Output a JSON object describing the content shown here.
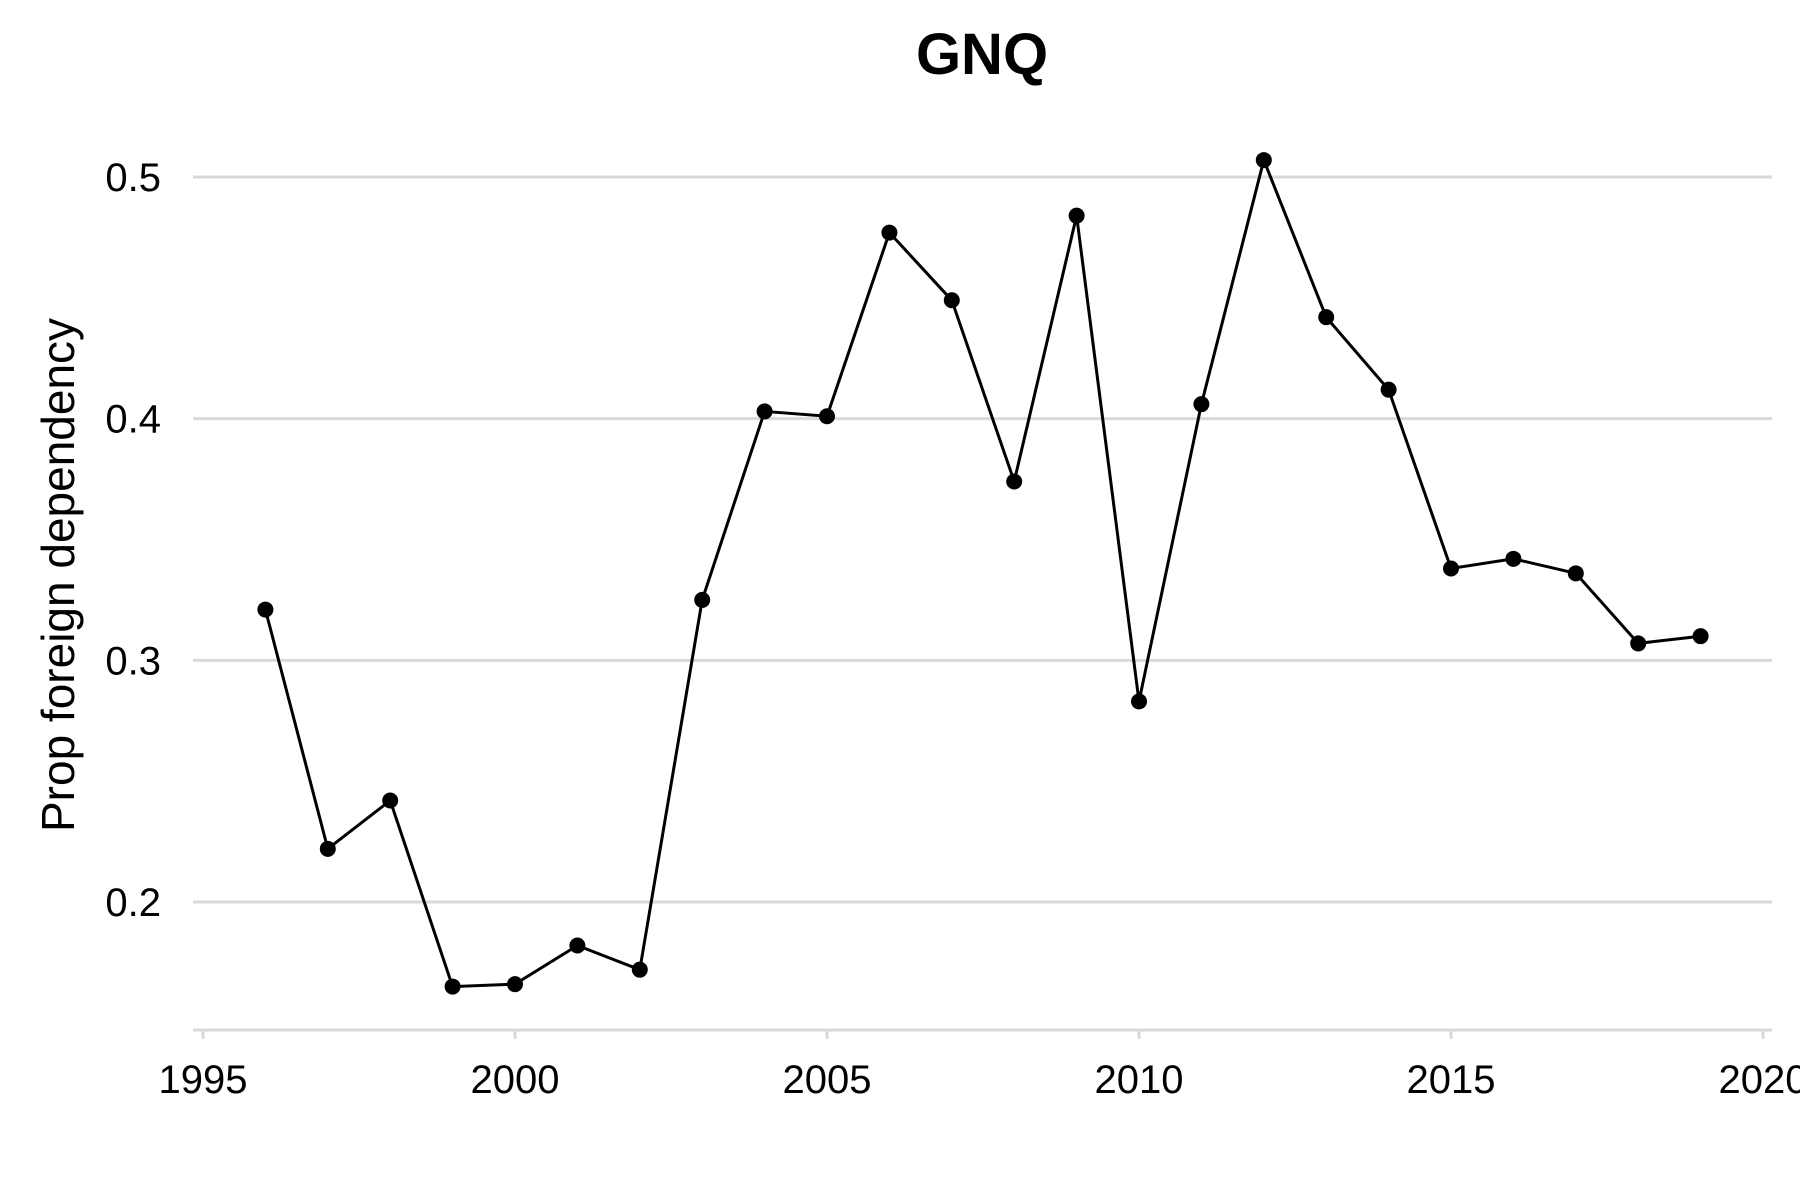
{
  "chart_data": {
    "type": "line",
    "title": "GNQ",
    "xlabel": "",
    "ylabel": "Prop foreign dependency",
    "xlim": [
      1995,
      2020
    ],
    "ylim": [
      0.15,
      0.52
    ],
    "x_ticks": [
      1995,
      2000,
      2005,
      2010,
      2015,
      2020
    ],
    "y_ticks": [
      0.2,
      0.3,
      0.4,
      0.5
    ],
    "y_tick_labels": [
      "0.2",
      "0.3",
      "0.4",
      "0.5"
    ],
    "grid": "horizontal",
    "legend": "none",
    "series": [
      {
        "color": "#000000",
        "x": [
          1996,
          1997,
          1998,
          1999,
          2000,
          2001,
          2002,
          2003,
          2004,
          2005,
          2006,
          2007,
          2008,
          2009,
          2010,
          2011,
          2012,
          2013,
          2014,
          2015,
          2016,
          2017,
          2018,
          2019
        ],
        "y": [
          0.321,
          0.222,
          0.242,
          0.165,
          0.166,
          0.182,
          0.172,
          0.325,
          0.403,
          0.401,
          0.477,
          0.449,
          0.374,
          0.484,
          0.283,
          0.406,
          0.507,
          0.442,
          0.412,
          0.338,
          0.342,
          0.336,
          0.307,
          0.31
        ]
      }
    ]
  }
}
